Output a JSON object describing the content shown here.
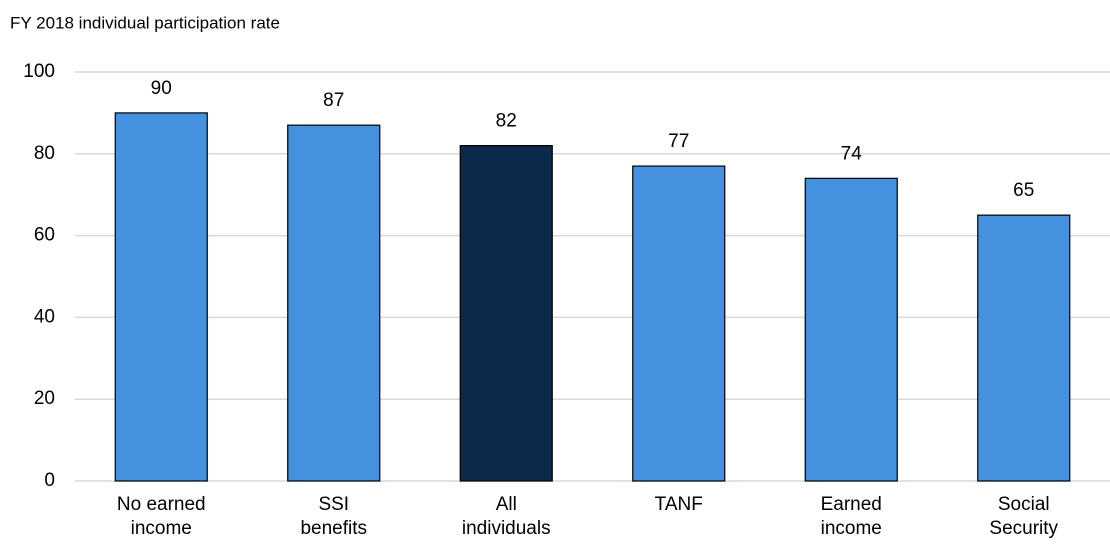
{
  "chart_data": {
    "type": "bar",
    "title": "FY 2018 individual participation rate",
    "categories": [
      "No earned\nincome",
      "SSI\nbenefits",
      "All\nindividuals",
      "TANF",
      "Earned\nincome",
      "Social\nSecurity"
    ],
    "values": [
      90,
      87,
      82,
      77,
      74,
      65
    ],
    "colors": [
      "#4591e0",
      "#4591e0",
      "#0c2a4a",
      "#4591e0",
      "#4591e0",
      "#4591e0"
    ],
    "ylim": [
      0,
      100
    ],
    "yticks": [
      0,
      20,
      40,
      60,
      80,
      100
    ],
    "grid": true
  }
}
